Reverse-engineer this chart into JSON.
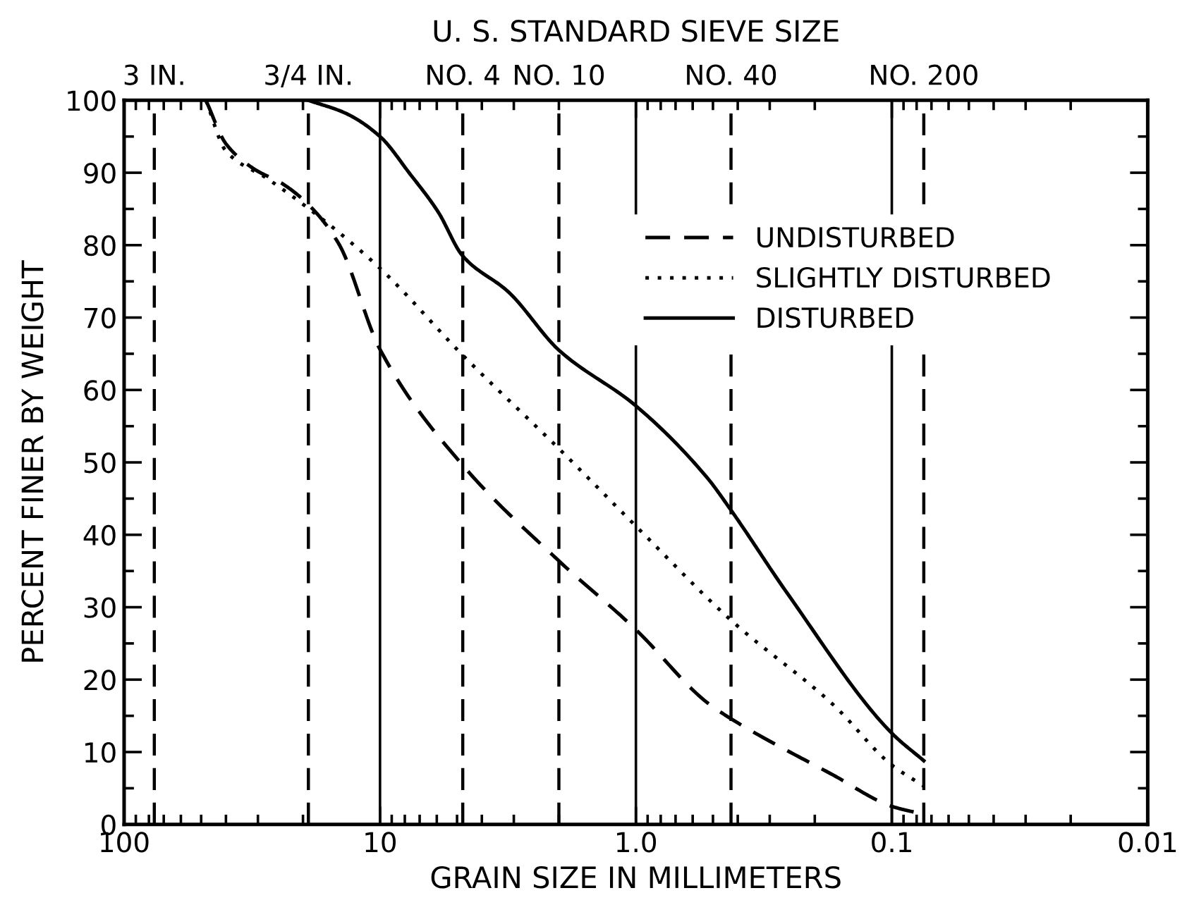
{
  "chart_data": {
    "type": "line",
    "title": "U. S. STANDARD SIEVE SIZE",
    "xlabel": "GRAIN SIZE IN MILLIMETERS",
    "ylabel": "PERCENT FINER BY WEIGHT",
    "log": "x",
    "xlim": [
      100,
      0.01
    ],
    "xticks": [
      100,
      10,
      {
        "value": 1,
        "label": "1.0"
      },
      0.1,
      0.01
    ],
    "ylim": [
      0,
      100
    ],
    "yticks": [
      0,
      10,
      20,
      30,
      40,
      50,
      60,
      70,
      80,
      90,
      100
    ],
    "grid": "x",
    "legend": "upper right",
    "marker": "none",
    "ref_lines": [
      {
        "axis": "x",
        "value": 76.2,
        "label": "3 IN.",
        "color": "#000000",
        "line_style": "dashed"
      },
      {
        "axis": "x",
        "value": 19.05,
        "label": "3/4 IN.",
        "color": "#000000",
        "line_style": "dashed"
      },
      {
        "axis": "x",
        "value": 4.75,
        "label": "NO. 4",
        "color": "#000000",
        "line_style": "dashed"
      },
      {
        "axis": "x",
        "value": 2.0,
        "label": "NO. 10",
        "color": "#000000",
        "line_style": "dashed"
      },
      {
        "axis": "x",
        "value": 0.425,
        "label": "NO. 40",
        "color": "#000000",
        "line_style": "dashed"
      },
      {
        "axis": "x",
        "value": 0.075,
        "label": "NO. 200",
        "color": "#000000",
        "line_style": "dashed"
      }
    ],
    "series": [
      {
        "name": "UNDISTURBED",
        "color": "#000000",
        "line_style": "dashed",
        "x": [
          47.9,
          40,
          31,
          24.1,
          19.05,
          14.5,
          10,
          4.75,
          2.0,
          1.0,
          0.53,
          0.425,
          0.169,
          0.1,
          0.075
        ],
        "values": [
          100,
          94,
          90.5,
          88.5,
          85.6,
          80.2,
          65.6,
          49.6,
          36.4,
          26.9,
          16.9,
          14.6,
          6.8,
          2.5,
          1.4
        ]
      },
      {
        "name": "SLIGHTLY DISTURBED",
        "color": "#000000",
        "line_style": "dotted",
        "x": [
          47.9,
          40,
          27.3,
          16.4,
          10,
          4.75,
          2.0,
          1.0,
          0.425,
          0.169,
          0.1,
          0.075
        ],
        "values": [
          100,
          93,
          89.1,
          83.3,
          76.8,
          64.8,
          51.9,
          41.2,
          28.2,
          16.5,
          8.2,
          5.3
        ]
      },
      {
        "name": "DISTURBED",
        "color": "#000000",
        "line_style": "solid",
        "x": [
          19.05,
          13.6,
          10,
          7.66,
          5.93,
          4.75,
          3.14,
          2.0,
          1.0,
          0.53,
          0.425,
          0.257,
          0.1,
          0.075
        ],
        "values": [
          100,
          98.2,
          95,
          89.9,
          84.6,
          78.5,
          73.5,
          65.5,
          57.8,
          48,
          43.4,
          32,
          12.6,
          8.8
        ]
      }
    ]
  }
}
